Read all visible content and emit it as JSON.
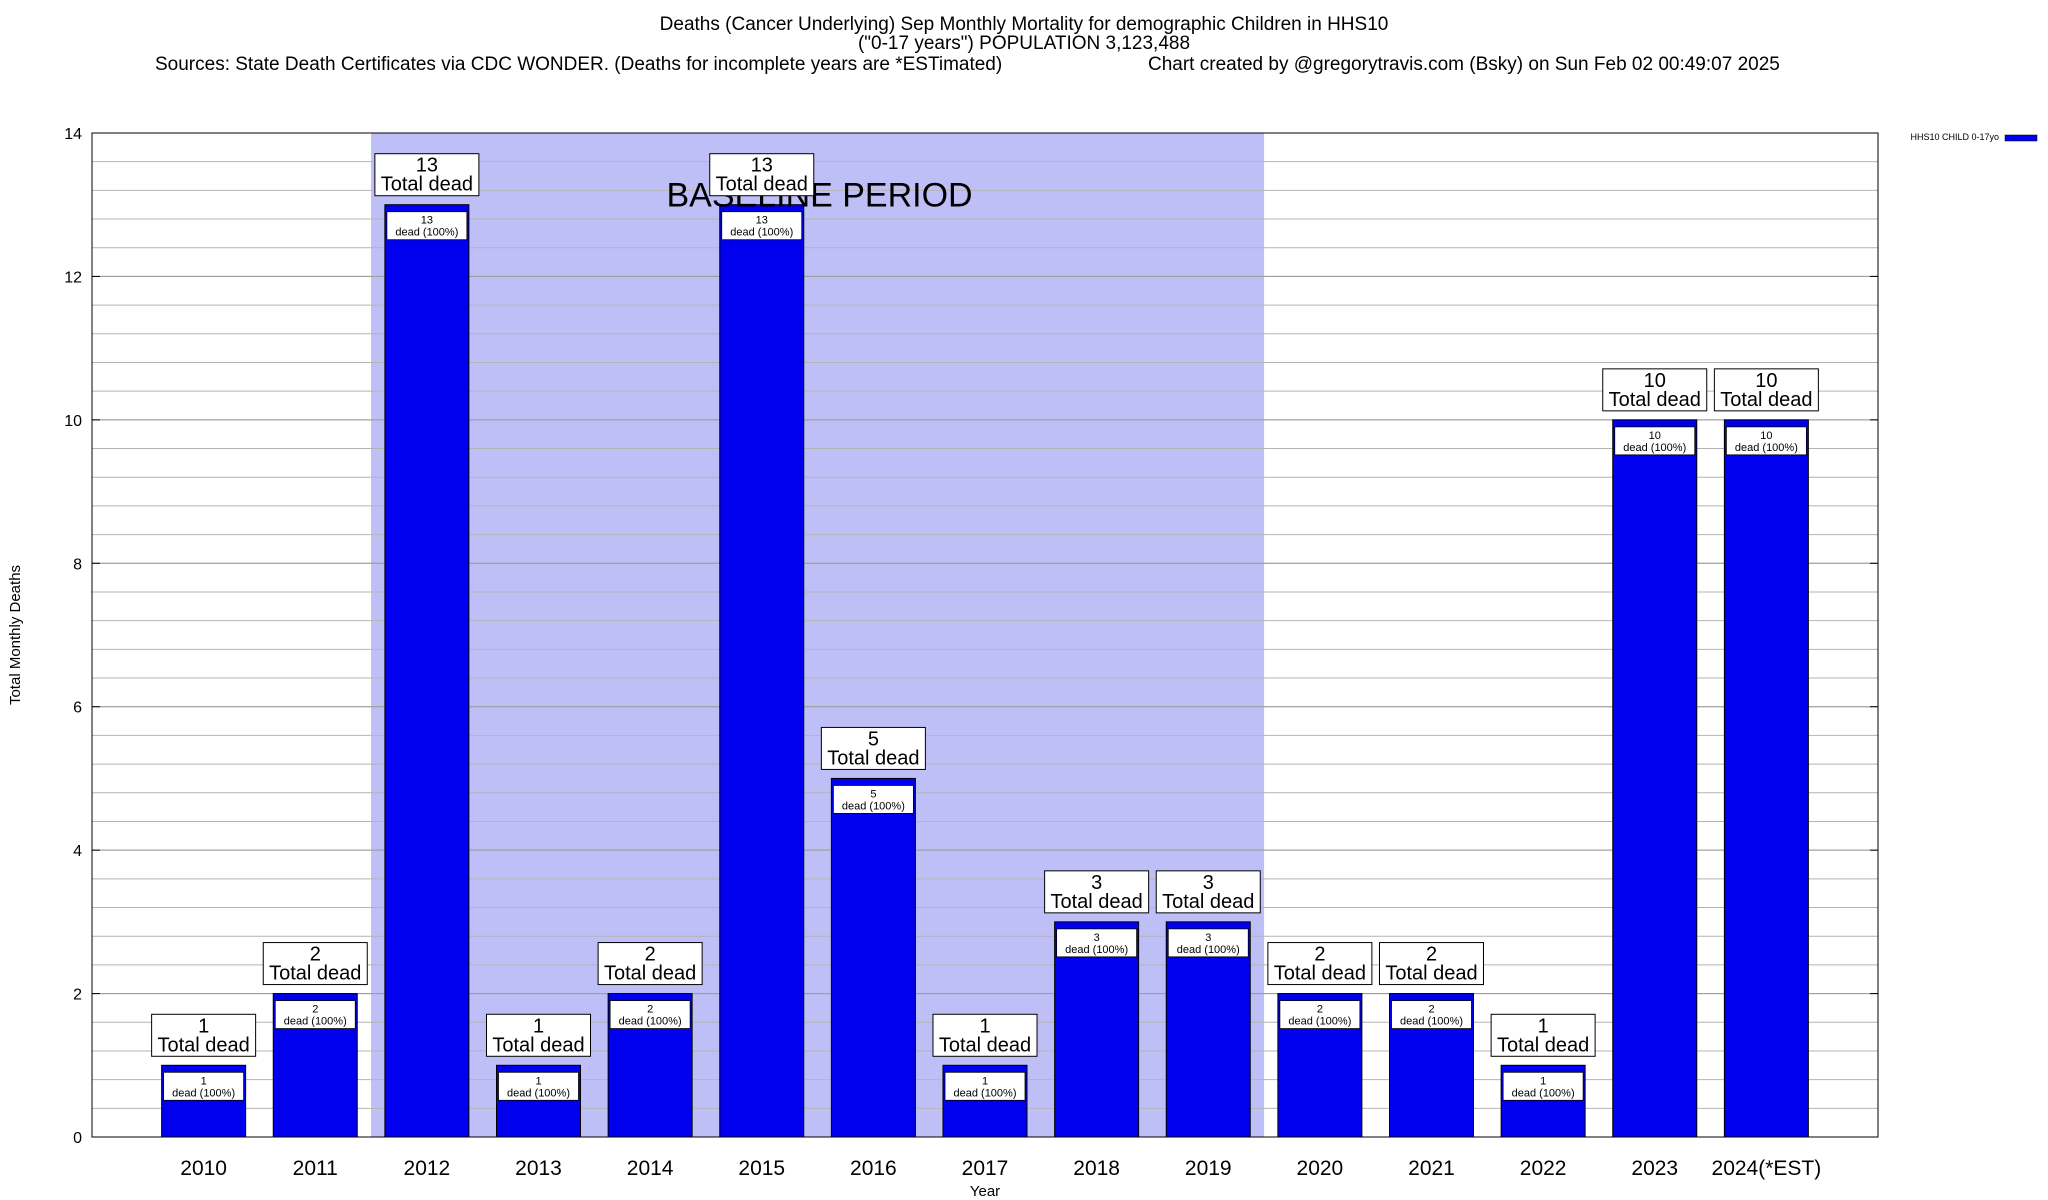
{
  "title": {
    "line1": "Deaths (Cancer Underlying) Sep Monthly Mortality for demographic Children in HHS10",
    "line2": "(\"0-17 years\") POPULATION 3,123,488",
    "sources": "Sources: State Death Certificates via CDC WONDER. (Deaths for incomplete years are *ESTimated)",
    "credit": "Chart created by @gregorytravis.com (Bsky) on Sun Feb 02 00:49:07 2025"
  },
  "chart_data": {
    "type": "bar",
    "xlabel": "Year",
    "ylabel": "Total Monthly Deaths",
    "ylim": [
      0,
      14
    ],
    "yticks": [
      0,
      2,
      4,
      6,
      8,
      10,
      12,
      14
    ],
    "grid": true,
    "legend": "top-right",
    "baseline_period": {
      "label": "BASELINE PERIOD",
      "from": "2012",
      "to": "2019",
      "color": "#bfbff8"
    },
    "bar_color": "#0000ee",
    "categories": [
      "2010",
      "2011",
      "2012",
      "2013",
      "2014",
      "2015",
      "2016",
      "2017",
      "2018",
      "2019",
      "2020",
      "2021",
      "2022",
      "2023",
      "2024(*EST)"
    ],
    "series": [
      {
        "name": "HHS10 CHILD 0-17yo",
        "values": [
          1,
          2,
          13,
          1,
          2,
          13,
          5,
          1,
          3,
          3,
          2,
          2,
          1,
          10,
          10
        ]
      }
    ],
    "total_label_suffix": "Total dead",
    "inner_label_suffix": "dead (100%)"
  }
}
